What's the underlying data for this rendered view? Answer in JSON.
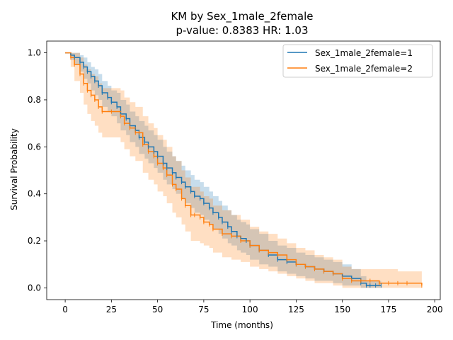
{
  "chart_data": {
    "type": "line",
    "subtype": "kaplan-meier survival curve with confidence bands",
    "title": "KM by Sex_1male_2female",
    "subtitle": "p-value: 0.8383  HR: 1.03",
    "xlabel": "Time (months)",
    "ylabel": "Survival Probability",
    "xlim": [
      -10,
      203
    ],
    "ylim": [
      -0.05,
      1.05
    ],
    "xticks": [
      0,
      25,
      50,
      75,
      100,
      125,
      150,
      175,
      200
    ],
    "yticks": [
      0.0,
      0.2,
      0.4,
      0.6,
      0.8,
      1.0
    ],
    "xtick_labels": [
      "0",
      "25",
      "50",
      "75",
      "100",
      "125",
      "150",
      "175",
      "200"
    ],
    "ytick_labels": [
      "0.0",
      "0.2",
      "0.4",
      "0.6",
      "0.8",
      "1.0"
    ],
    "grid": false,
    "legend_position": "top-right",
    "series": [
      {
        "name": "Sex_1male_2female=1",
        "color": "#1f77b4",
        "x": [
          0,
          3,
          5,
          8,
          10,
          12,
          14,
          16,
          18,
          20,
          23,
          25,
          28,
          30,
          33,
          35,
          38,
          40,
          43,
          45,
          48,
          50,
          53,
          55,
          58,
          60,
          63,
          65,
          68,
          70,
          73,
          75,
          78,
          80,
          83,
          85,
          88,
          90,
          93,
          95,
          98,
          100,
          105,
          110,
          115,
          120,
          125,
          130,
          135,
          140,
          145,
          150,
          155,
          160,
          163,
          165,
          168,
          171
        ],
        "y": [
          1.0,
          0.99,
          0.98,
          0.96,
          0.94,
          0.92,
          0.9,
          0.88,
          0.86,
          0.83,
          0.81,
          0.79,
          0.77,
          0.74,
          0.72,
          0.69,
          0.67,
          0.64,
          0.62,
          0.6,
          0.58,
          0.56,
          0.53,
          0.51,
          0.49,
          0.47,
          0.45,
          0.43,
          0.41,
          0.39,
          0.38,
          0.36,
          0.34,
          0.32,
          0.3,
          0.28,
          0.26,
          0.24,
          0.22,
          0.21,
          0.2,
          0.18,
          0.16,
          0.14,
          0.12,
          0.11,
          0.1,
          0.09,
          0.08,
          0.07,
          0.06,
          0.05,
          0.04,
          0.02,
          0.01,
          0.01,
          0.01,
          0.01
        ],
        "ci_lower": [
          1.0,
          0.97,
          0.95,
          0.92,
          0.89,
          0.87,
          0.84,
          0.82,
          0.8,
          0.77,
          0.75,
          0.73,
          0.7,
          0.67,
          0.65,
          0.62,
          0.6,
          0.57,
          0.55,
          0.53,
          0.51,
          0.49,
          0.46,
          0.44,
          0.42,
          0.4,
          0.38,
          0.36,
          0.34,
          0.32,
          0.31,
          0.29,
          0.27,
          0.25,
          0.23,
          0.21,
          0.19,
          0.18,
          0.16,
          0.15,
          0.14,
          0.12,
          0.1,
          0.09,
          0.07,
          0.06,
          0.05,
          0.04,
          0.03,
          0.03,
          0.02,
          0.01,
          0.01,
          0.0,
          0.0,
          0.0,
          0.0,
          0.0
        ],
        "ci_upper": [
          1.0,
          1.0,
          1.0,
          0.99,
          0.98,
          0.96,
          0.94,
          0.93,
          0.91,
          0.88,
          0.86,
          0.84,
          0.83,
          0.8,
          0.78,
          0.75,
          0.73,
          0.71,
          0.69,
          0.67,
          0.65,
          0.63,
          0.6,
          0.58,
          0.56,
          0.54,
          0.52,
          0.5,
          0.48,
          0.46,
          0.45,
          0.43,
          0.41,
          0.39,
          0.37,
          0.35,
          0.33,
          0.31,
          0.29,
          0.28,
          0.27,
          0.25,
          0.23,
          0.2,
          0.18,
          0.17,
          0.15,
          0.14,
          0.13,
          0.12,
          0.11,
          0.1,
          0.08,
          0.05,
          0.03,
          0.03,
          0.03,
          0.03
        ]
      },
      {
        "name": "Sex_1male_2female=2",
        "color": "#ff7f0e",
        "x": [
          0,
          3,
          5,
          8,
          10,
          12,
          14,
          16,
          18,
          20,
          25,
          30,
          32,
          35,
          38,
          40,
          42,
          45,
          48,
          50,
          53,
          55,
          58,
          60,
          63,
          65,
          68,
          70,
          73,
          75,
          78,
          80,
          85,
          90,
          95,
          100,
          105,
          110,
          115,
          120,
          125,
          130,
          135,
          140,
          145,
          150,
          155,
          160,
          165,
          170,
          175,
          180,
          185,
          193
        ],
        "y": [
          1.0,
          0.98,
          0.95,
          0.91,
          0.87,
          0.84,
          0.82,
          0.8,
          0.77,
          0.75,
          0.75,
          0.73,
          0.7,
          0.68,
          0.66,
          0.66,
          0.61,
          0.58,
          0.56,
          0.53,
          0.51,
          0.48,
          0.44,
          0.42,
          0.38,
          0.35,
          0.31,
          0.31,
          0.3,
          0.28,
          0.27,
          0.25,
          0.23,
          0.22,
          0.2,
          0.18,
          0.16,
          0.15,
          0.14,
          0.12,
          0.1,
          0.09,
          0.08,
          0.07,
          0.06,
          0.04,
          0.03,
          0.03,
          0.03,
          0.02,
          0.02,
          0.02,
          0.02,
          0.01
        ],
        "ci_lower": [
          1.0,
          0.94,
          0.88,
          0.83,
          0.78,
          0.74,
          0.71,
          0.69,
          0.66,
          0.64,
          0.64,
          0.62,
          0.59,
          0.56,
          0.54,
          0.54,
          0.49,
          0.46,
          0.44,
          0.41,
          0.39,
          0.36,
          0.32,
          0.3,
          0.27,
          0.24,
          0.2,
          0.2,
          0.19,
          0.18,
          0.17,
          0.15,
          0.13,
          0.12,
          0.11,
          0.09,
          0.08,
          0.07,
          0.06,
          0.05,
          0.04,
          0.03,
          0.02,
          0.02,
          0.01,
          0.0,
          0.0,
          0.0,
          0.0,
          0.0,
          0.0,
          0.0,
          0.0,
          0.0
        ],
        "ci_upper": [
          1.0,
          1.0,
          1.0,
          0.98,
          0.95,
          0.93,
          0.91,
          0.9,
          0.87,
          0.85,
          0.85,
          0.84,
          0.81,
          0.79,
          0.77,
          0.77,
          0.73,
          0.7,
          0.68,
          0.65,
          0.63,
          0.6,
          0.56,
          0.54,
          0.5,
          0.47,
          0.43,
          0.43,
          0.41,
          0.39,
          0.38,
          0.35,
          0.33,
          0.31,
          0.29,
          0.26,
          0.24,
          0.23,
          0.21,
          0.19,
          0.17,
          0.16,
          0.14,
          0.13,
          0.12,
          0.09,
          0.08,
          0.08,
          0.08,
          0.08,
          0.08,
          0.07,
          0.07,
          0.07
        ]
      }
    ]
  }
}
